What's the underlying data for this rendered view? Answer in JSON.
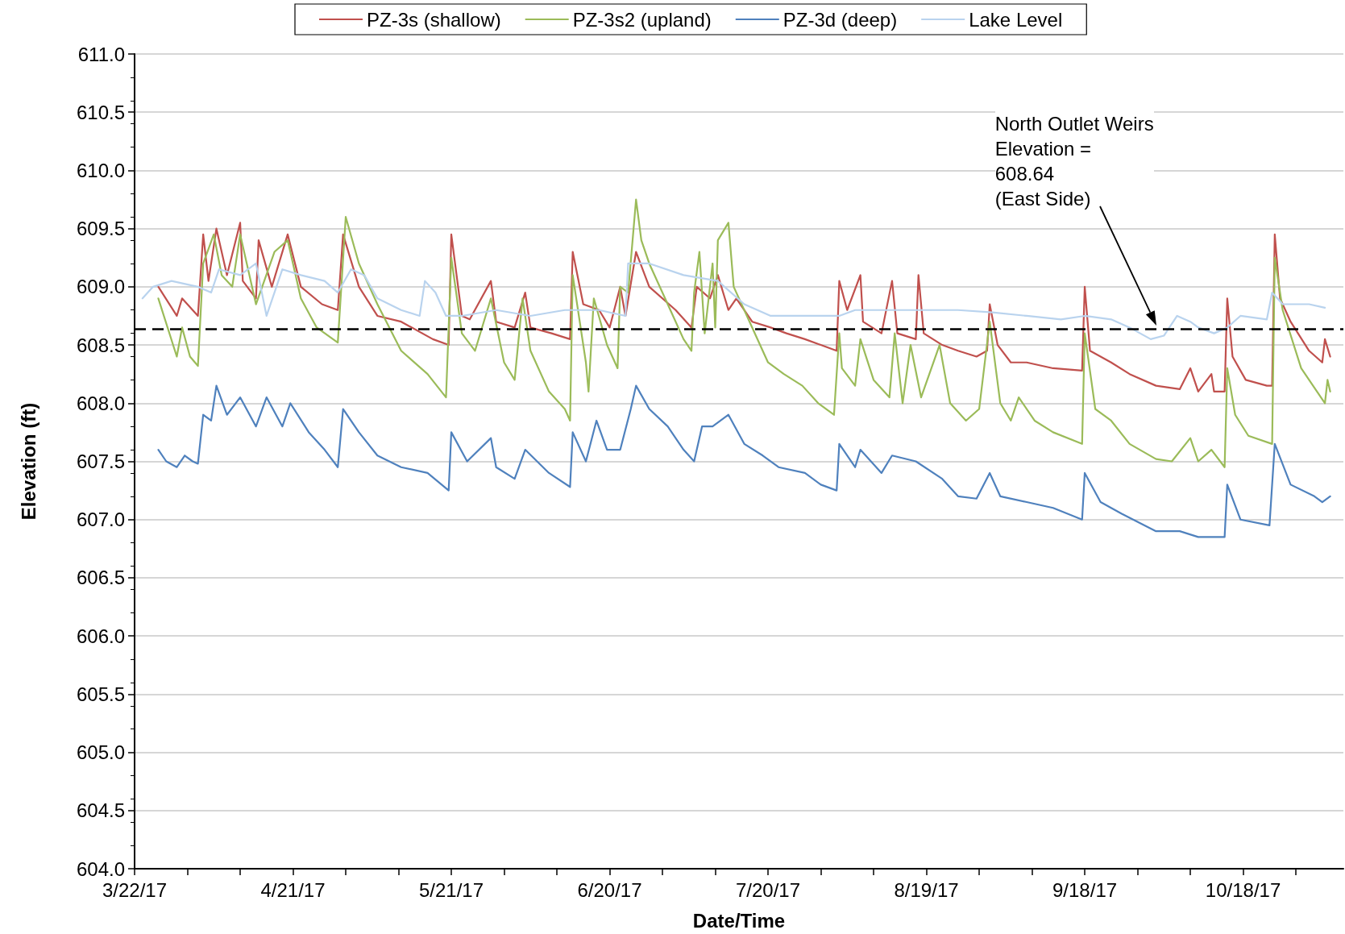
{
  "chart_data": {
    "type": "line",
    "xlabel": "Date/Time",
    "ylabel": "Elevation (ft)",
    "xlim": [
      "--03-22",
      "--11-06"
    ],
    "xticks": [
      {
        "value": "--03-22",
        "label": "3/22/17"
      },
      {
        "value": "--04-01",
        "label": null
      },
      {
        "value": "--04-11",
        "label": null
      },
      {
        "value": "--04-21",
        "label": "4/21/17"
      },
      {
        "value": "--05-01",
        "label": null
      },
      {
        "value": "--05-11",
        "label": null
      },
      {
        "value": "--05-21",
        "label": "5/21/17"
      },
      {
        "value": "--05-31",
        "label": null
      },
      {
        "value": "--06-10",
        "label": null
      },
      {
        "value": "--06-20",
        "label": "6/20/17"
      },
      {
        "value": "--06-30",
        "label": null
      },
      {
        "value": "--07-10",
        "label": null
      },
      {
        "value": "--07-20",
        "label": "7/20/17"
      },
      {
        "value": "--07-30",
        "label": null
      },
      {
        "value": "--08-09",
        "label": null
      },
      {
        "value": "--08-19",
        "label": "8/19/17"
      },
      {
        "value": "--08-29",
        "label": null
      },
      {
        "value": "--09-08",
        "label": null
      },
      {
        "value": "--09-18",
        "label": "9/18/17"
      },
      {
        "value": "--09-28",
        "label": null
      },
      {
        "value": "--10-08",
        "label": null
      },
      {
        "value": "--10-18",
        "label": "10/18/17"
      },
      {
        "value": "--10-28",
        "label": null
      }
    ],
    "ylim": [
      604,
      611
    ],
    "yticks": [
      {
        "value": 604,
        "label": "604.0"
      },
      {
        "value": 604.5,
        "label": "604.5"
      },
      {
        "value": 605,
        "label": "605.0"
      },
      {
        "value": 605.5,
        "label": "605.5"
      },
      {
        "value": 606,
        "label": "606.0"
      },
      {
        "value": 606.5,
        "label": "606.5"
      },
      {
        "value": 607,
        "label": "607.0"
      },
      {
        "value": 607.5,
        "label": "607.5"
      },
      {
        "value": 608,
        "label": "608.0"
      },
      {
        "value": 608.5,
        "label": "608.5"
      },
      {
        "value": 609,
        "label": "609.0"
      },
      {
        "value": 609.5,
        "label": "609.5"
      },
      {
        "value": 610,
        "label": "610.0"
      },
      {
        "value": 610.5,
        "label": "610.5"
      },
      {
        "value": 611,
        "label": "611.0"
      }
    ],
    "grid": "y",
    "legend": "top",
    "marker": "none",
    "line_style": "solid",
    "ref_lines": [
      {
        "axis": "y",
        "value": 608.64,
        "color": "#000000",
        "line_style": "dashed"
      }
    ],
    "annotations": [
      "North Outlet Weirs\nElevation =\n608.64\n(East Side)"
    ],
    "series": [
      {
        "name": "PZ-3s (shallow)",
        "color": "#c0504d",
        "x": [
          "--03-26T12:00",
          "--03-30",
          "--03-31",
          "--04-03",
          "--04-04",
          "--04-05",
          "--04-06T12:00",
          "--04-08T12:00",
          "--04-11",
          "--04-11T12:00",
          "--04-14",
          "--04-14T12:00",
          "--04-17",
          "--04-20",
          "--04-22T12:00",
          "--04-26T12:00",
          "--04-29T12:00",
          "--04-30T12:00",
          "--05-03T12:00",
          "--05-07",
          "--05-11T12:00",
          "--05-17T12:00",
          "--05-20T12:00",
          "--05-21",
          "--05-23",
          "--05-24T12:00",
          "--05-28T12:00",
          "--05-29T12:00",
          "--06-02",
          "--06-04",
          "--06-05",
          "--06-09",
          "--06-12T12:00",
          "--06-13",
          "--06-15",
          "--06-18",
          "--06-20",
          "--06-22",
          "--06-23",
          "--06-25",
          "--06-27T12:00",
          "--07-02T12:00",
          "--07-05T12:00",
          "--07-06T12:00",
          "--07-09",
          "--07-10T12:00",
          "--07-12T12:00",
          "--07-14",
          "--07-17",
          "--07-20T12:00",
          "--07-23T12:00",
          "--07-27",
          "--07-30",
          "--08-02",
          "--08-02T12:00",
          "--08-04",
          "--08-06T12:00",
          "--08-07",
          "--08-10T12:00",
          "--08-12T12:00",
          "--08-13T12:00",
          "--08-17",
          "--08-17T12:00",
          "--08-18T12:00",
          "--08-22",
          "--08-25",
          "--08-28T12:00",
          "--08-30T12:00",
          "--08-31",
          "--09-01T12:00",
          "--09-04",
          "--09-07",
          "--09-12",
          "--09-17T12:00",
          "--09-18",
          "--09-19",
          "--09-23",
          "--09-26T12:00",
          "--10-01T12:00",
          "--10-06",
          "--10-08",
          "--10-09T12:00",
          "--10-12",
          "--10-12T12:00",
          "--10-14T12:00",
          "--10-15",
          "--10-16",
          "--10-18T12:00",
          "--10-22T12:00",
          "--10-23T12:00",
          "--10-24",
          "--10-25",
          "--10-27",
          "--10-30T12:00",
          "--11-02",
          "--11-02T12:00",
          "--11-03T12:00"
        ],
        "values": [
          609.0,
          608.75,
          608.9,
          608.75,
          609.45,
          609.05,
          609.5,
          609.1,
          609.55,
          609.05,
          608.9,
          609.4,
          609.0,
          609.45,
          609.0,
          608.85,
          608.8,
          609.45,
          609.0,
          608.75,
          608.7,
          608.55,
          608.5,
          609.45,
          608.75,
          608.72,
          609.05,
          608.7,
          608.65,
          608.95,
          608.65,
          608.6,
          608.55,
          609.3,
          608.85,
          608.8,
          608.65,
          609.0,
          608.75,
          609.3,
          609.0,
          608.8,
          608.65,
          609.0,
          608.9,
          609.1,
          608.8,
          608.9,
          608.7,
          608.65,
          608.6,
          608.55,
          608.5,
          608.45,
          609.05,
          608.8,
          609.1,
          608.7,
          608.6,
          609.05,
          608.6,
          608.55,
          609.1,
          608.6,
          608.5,
          608.45,
          608.4,
          608.45,
          608.85,
          608.5,
          608.35,
          608.35,
          608.3,
          608.28,
          609.0,
          608.45,
          608.35,
          608.25,
          608.15,
          608.12,
          608.3,
          608.1,
          608.25,
          608.1,
          608.1,
          608.9,
          608.4,
          608.2,
          608.15,
          608.15,
          609.45,
          608.9,
          608.7,
          608.45,
          608.35,
          608.55,
          608.4
        ]
      },
      {
        "name": "PZ-3s2 (upland)",
        "color": "#9bbb59",
        "x": [
          "--03-26T12:00",
          "--03-30",
          "--03-31",
          "--04-01T12:00",
          "--04-03",
          "--04-04",
          "--04-06",
          "--04-07T12:00",
          "--04-09T12:00",
          "--04-11",
          "--04-14",
          "--04-17T12:00",
          "--04-20",
          "--04-22T12:00",
          "--04-25T12:00",
          "--04-29T12:00",
          "--05-01",
          "--05-03T12:00",
          "--05-07",
          "--05-11T12:00",
          "--05-16T12:00",
          "--05-20",
          "--05-21",
          "--05-23",
          "--05-25T12:00",
          "--05-28T12:00",
          "--05-31",
          "--06-02",
          "--06-03T12:00",
          "--06-05",
          "--06-08T12:00",
          "--06-11T12:00",
          "--06-12T12:00",
          "--06-13",
          "--06-15T12:00",
          "--06-16",
          "--06-17",
          "--06-19T12:00",
          "--06-21T12:00",
          "--06-22",
          "--06-23T12:00",
          "--06-25",
          "--06-26",
          "--06-27T12:00",
          "--07-01",
          "--07-04",
          "--07-05T12:00",
          "--07-06",
          "--07-07",
          "--07-08",
          "--07-09T12:00",
          "--07-10",
          "--07-10T12:00",
          "--07-12T12:00",
          "--07-13T12:00",
          "--07-16T12:00",
          "--07-20",
          "--07-23",
          "--07-26T12:00",
          "--07-29T12:00",
          "--08-01T12:00",
          "--08-02T12:00",
          "--08-03",
          "--08-05T12:00",
          "--08-06T12:00",
          "--08-09",
          "--08-12",
          "--08-13",
          "--08-14T12:00",
          "--08-16",
          "--08-18",
          "--08-21T12:00",
          "--08-23T12:00",
          "--08-26T12:00",
          "--08-29",
          "--08-31",
          "--09-02",
          "--09-04",
          "--09-05T12:00",
          "--09-08T12:00",
          "--09-12",
          "--09-17T12:00",
          "--09-18",
          "--09-20",
          "--09-23",
          "--09-26T12:00",
          "--10-01T12:00",
          "--10-04T12:00",
          "--10-08",
          "--10-09T12:00",
          "--10-12",
          "--10-14T12:00",
          "--10-15",
          "--10-16T12:00",
          "--10-19",
          "--10-23T12:00",
          "--10-24",
          "--10-25T12:00",
          "--10-29",
          "--11-01",
          "--11-02T12:00",
          "--11-03",
          "--11-03T12:00"
        ],
        "values": [
          608.9,
          608.4,
          608.65,
          608.4,
          608.32,
          609.2,
          609.45,
          609.1,
          609.0,
          609.45,
          608.85,
          609.3,
          609.4,
          608.9,
          608.65,
          608.52,
          609.6,
          609.2,
          608.85,
          608.45,
          608.25,
          608.05,
          609.25,
          608.6,
          608.45,
          608.9,
          608.35,
          608.2,
          608.9,
          608.45,
          608.1,
          607.95,
          607.85,
          609.1,
          608.35,
          608.1,
          608.9,
          608.5,
          608.3,
          609.0,
          608.95,
          609.75,
          609.4,
          609.2,
          608.85,
          608.55,
          608.45,
          608.95,
          609.3,
          608.6,
          609.2,
          608.65,
          609.4,
          609.55,
          609.0,
          608.7,
          608.35,
          608.25,
          608.15,
          608.0,
          607.9,
          608.6,
          608.3,
          608.15,
          608.55,
          608.2,
          608.05,
          608.6,
          608.0,
          608.5,
          608.05,
          608.5,
          608.0,
          607.85,
          607.95,
          608.7,
          608.0,
          607.85,
          608.05,
          607.85,
          607.75,
          607.65,
          608.6,
          607.95,
          607.85,
          607.65,
          607.52,
          607.5,
          607.7,
          607.5,
          607.6,
          607.45,
          608.3,
          607.9,
          607.72,
          607.65,
          609.25,
          608.8,
          608.3,
          608.1,
          608.0,
          608.2,
          608.1
        ]
      },
      {
        "name": "PZ-3d (deep)",
        "color": "#4f81bd",
        "x": [
          "--03-26T12:00",
          "--03-28",
          "--03-30",
          "--03-31T12:00",
          "--04-02",
          "--04-03",
          "--04-04",
          "--04-05T12:00",
          "--04-06T12:00",
          "--04-08T12:00",
          "--04-11",
          "--04-14",
          "--04-16",
          "--04-19",
          "--04-20T12:00",
          "--04-24",
          "--04-27",
          "--04-29T12:00",
          "--04-30T12:00",
          "--05-03T12:00",
          "--05-07",
          "--05-11T12:00",
          "--05-16T12:00",
          "--05-20T12:00",
          "--05-21",
          "--05-24",
          "--05-28T12:00",
          "--05-29T12:00",
          "--06-02",
          "--06-04",
          "--06-08T12:00",
          "--06-12T12:00",
          "--06-13",
          "--06-15T12:00",
          "--06-17T12:00",
          "--06-19T12:00",
          "--06-22",
          "--06-24",
          "--06-25",
          "--06-27T12:00",
          "--07-01",
          "--07-04",
          "--07-06",
          "--07-07T12:00",
          "--07-09T12:00",
          "--07-12T12:00",
          "--07-15T12:00",
          "--07-19",
          "--07-22",
          "--07-27",
          "--07-30",
          "--08-02",
          "--08-02T12:00",
          "--08-05T12:00",
          "--08-06T12:00",
          "--08-10T12:00",
          "--08-12T12:00",
          "--08-17",
          "--08-22",
          "--08-25",
          "--08-28T12:00",
          "--08-31",
          "--09-02",
          "--09-07",
          "--09-12",
          "--09-17T12:00",
          "--09-18",
          "--09-21",
          "--09-25",
          "--10-01T12:00",
          "--10-06",
          "--10-09T12:00",
          "--10-14T12:00",
          "--10-15",
          "--10-17T12:00",
          "--10-23",
          "--10-24",
          "--10-27",
          "--10-31T12:00",
          "--11-02",
          "--11-03T12:00"
        ],
        "values": [
          607.6,
          607.5,
          607.45,
          607.55,
          607.5,
          607.48,
          607.9,
          607.85,
          608.15,
          607.9,
          608.05,
          607.8,
          608.05,
          607.8,
          608.0,
          607.75,
          607.6,
          607.45,
          607.95,
          607.75,
          607.55,
          607.45,
          607.4,
          607.25,
          607.75,
          607.5,
          607.7,
          607.45,
          607.35,
          607.6,
          607.4,
          607.28,
          607.75,
          607.5,
          607.85,
          607.6,
          607.6,
          607.95,
          608.15,
          607.95,
          607.8,
          607.6,
          607.5,
          607.8,
          607.8,
          607.9,
          607.65,
          607.55,
          607.45,
          607.4,
          607.3,
          607.25,
          607.65,
          607.45,
          607.6,
          607.4,
          607.55,
          607.5,
          607.35,
          607.2,
          607.18,
          607.4,
          607.2,
          607.15,
          607.1,
          607.0,
          607.4,
          607.15,
          607.05,
          606.9,
          606.9,
          606.85,
          606.85,
          607.3,
          607.0,
          606.95,
          607.65,
          607.3,
          607.2,
          607.15,
          607.2
        ]
      },
      {
        "name": "Lake Level",
        "color": "#b9d3ee",
        "x": [
          "--03-23T12:00",
          "--03-25T12:00",
          "--03-29",
          "--04-03",
          "--04-05T12:00",
          "--04-07",
          "--04-11",
          "--04-14",
          "--04-16",
          "--04-19",
          "--04-22T12:00",
          "--04-27",
          "--04-29T12:00",
          "--05-02",
          "--05-04T12:00",
          "--05-07",
          "--05-11T12:00",
          "--05-15",
          "--05-16",
          "--05-18",
          "--05-20",
          "--05-23",
          "--05-29T12:00",
          "--06-05",
          "--06-11T12:00",
          "--06-18",
          "--06-23",
          "--06-23T12:00",
          "--06-27T12:00",
          "--07-04",
          "--07-10T12:00",
          "--07-15T12:00",
          "--07-20T12:00",
          "--07-27",
          "--08-02T12:00",
          "--08-05T12:00",
          "--08-12",
          "--08-18T12:00",
          "--08-25",
          "--08-31T12:00",
          "--09-07",
          "--09-13T12:00",
          "--09-18",
          "--09-23",
          "--09-26T12:00",
          "--09-30T12:00",
          "--10-03",
          "--10-05T12:00",
          "--10-08",
          "--10-09T12:00",
          "--10-12T12:00",
          "--10-15",
          "--10-17T12:00",
          "--10-22T12:00",
          "--10-23T12:00",
          "--10-25T12:00",
          "--10-30T12:00",
          "--11-02T12:00"
        ],
        "values": [
          608.9,
          609.0,
          609.05,
          609.0,
          608.95,
          609.15,
          609.1,
          609.2,
          608.75,
          609.15,
          609.1,
          609.05,
          608.95,
          609.15,
          609.1,
          608.9,
          608.8,
          608.75,
          609.05,
          608.95,
          608.75,
          608.75,
          608.8,
          608.75,
          608.8,
          608.8,
          608.75,
          609.2,
          609.2,
          609.1,
          609.05,
          608.85,
          608.75,
          608.75,
          608.75,
          608.8,
          608.8,
          608.8,
          608.8,
          608.78,
          608.75,
          608.72,
          608.75,
          608.72,
          608.65,
          608.55,
          608.58,
          608.75,
          608.7,
          608.65,
          608.6,
          608.65,
          608.75,
          608.72,
          608.95,
          608.85,
          608.85,
          608.82
        ]
      }
    ]
  }
}
